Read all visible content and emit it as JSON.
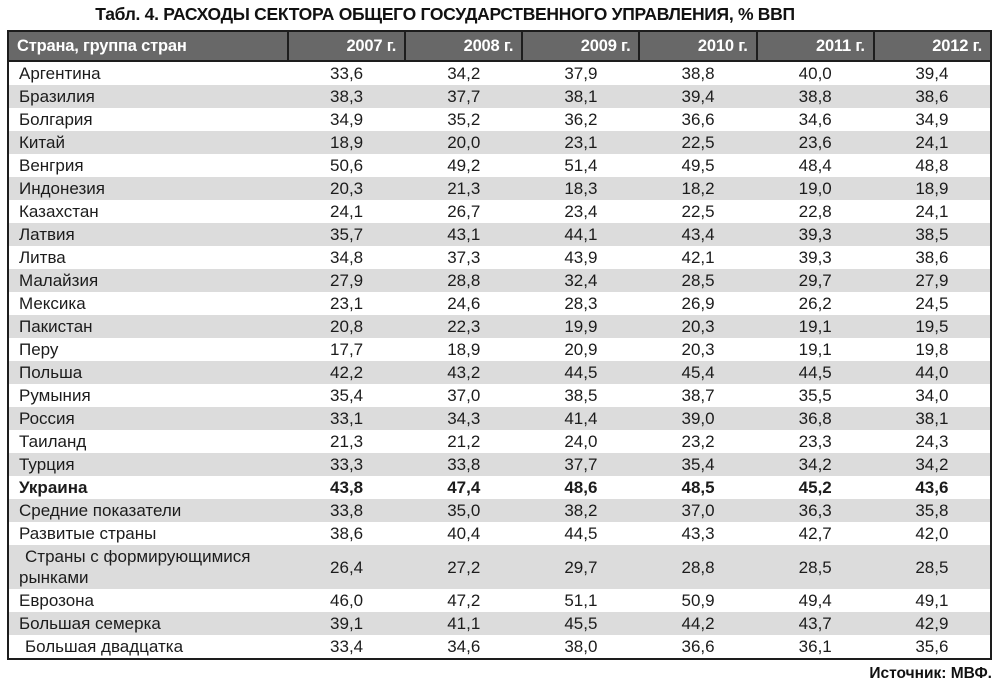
{
  "page": {
    "title": "Табл. 4. РАСХОДЫ СЕКТОРА ОБЩЕГО ГОСУДАРСТВЕННОГО УПРАВЛЕНИЯ, % ВВП",
    "source": "Источник: МВФ."
  },
  "colors": {
    "header_bg": "#686868",
    "header_text": "#ffffff",
    "zebra": "#dcdcdc",
    "border": "#1d1d1d",
    "text": "#1c1c1c"
  },
  "table": {
    "columns": [
      "Страна, группа стран",
      "2007 г.",
      "2008 г.",
      "2009 г.",
      "2010 г.",
      "2011 г.",
      "2012 г."
    ],
    "rows": [
      {
        "label": "Аргентина",
        "values": [
          "33,6",
          "34,2",
          "37,9",
          "38,8",
          "40,0",
          "39,4"
        ]
      },
      {
        "label": "Бразилия",
        "values": [
          "38,3",
          "37,7",
          "38,1",
          "39,4",
          "38,8",
          "38,6"
        ]
      },
      {
        "label": "Болгария",
        "values": [
          "34,9",
          "35,2",
          "36,2",
          "36,6",
          "34,6",
          "34,9"
        ]
      },
      {
        "label": "Китай",
        "values": [
          "18,9",
          "20,0",
          "23,1",
          "22,5",
          "23,6",
          "24,1"
        ]
      },
      {
        "label": "Венгрия",
        "values": [
          "50,6",
          "49,2",
          "51,4",
          "49,5",
          "48,4",
          "48,8"
        ]
      },
      {
        "label": "Индонезия",
        "values": [
          "20,3",
          "21,3",
          "18,3",
          "18,2",
          "19,0",
          "18,9"
        ]
      },
      {
        "label": "Казахстан",
        "values": [
          "24,1",
          "26,7",
          "23,4",
          "22,5",
          "22,8",
          "24,1"
        ]
      },
      {
        "label": "Латвия",
        "values": [
          "35,7",
          "43,1",
          "44,1",
          "43,4",
          "39,3",
          "38,5"
        ]
      },
      {
        "label": "Литва",
        "values": [
          "34,8",
          "37,3",
          "43,9",
          "42,1",
          "39,3",
          "38,6"
        ]
      },
      {
        "label": "Малайзия",
        "values": [
          "27,9",
          "28,8",
          "32,4",
          "28,5",
          "29,7",
          "27,9"
        ]
      },
      {
        "label": "Мексика",
        "values": [
          "23,1",
          "24,6",
          "28,3",
          "26,9",
          "26,2",
          "24,5"
        ]
      },
      {
        "label": "Пакистан",
        "values": [
          "20,8",
          "22,3",
          "19,9",
          "20,3",
          "19,1",
          "19,5"
        ]
      },
      {
        "label": "Перу",
        "values": [
          "17,7",
          "18,9",
          "20,9",
          "20,3",
          "19,1",
          "19,8"
        ]
      },
      {
        "label": "Польша",
        "values": [
          "42,2",
          "43,2",
          "44,5",
          "45,4",
          "44,5",
          "44,0"
        ]
      },
      {
        "label": "Румыния",
        "values": [
          "35,4",
          "37,0",
          "38,5",
          "38,7",
          "35,5",
          "34,0"
        ]
      },
      {
        "label": "Россия",
        "values": [
          "33,1",
          "34,3",
          "41,4",
          "39,0",
          "36,8",
          "38,1"
        ]
      },
      {
        "label": "Таиланд",
        "values": [
          "21,3",
          "21,2",
          "24,0",
          "23,2",
          "23,3",
          "24,3"
        ]
      },
      {
        "label": "Турция",
        "values": [
          "33,3",
          "33,8",
          "37,7",
          "35,4",
          "34,2",
          "34,2"
        ]
      },
      {
        "label": "Украина",
        "values": [
          "43,8",
          "47,4",
          "48,6",
          "48,5",
          "45,2",
          "43,6"
        ],
        "bold": true
      },
      {
        "label": "Средние показатели",
        "values": [
          "33,8",
          "35,0",
          "38,2",
          "37,0",
          "36,3",
          "35,8"
        ]
      },
      {
        "label": "Развитые страны",
        "values": [
          "38,6",
          "40,4",
          "44,5",
          "43,3",
          "42,7",
          "42,0"
        ]
      },
      {
        "label": "Страны с формирующимися рынками",
        "values": [
          "26,4",
          "27,2",
          "29,7",
          "28,8",
          "28,5",
          "28,5"
        ],
        "indent": true
      },
      {
        "label": "Еврозона",
        "values": [
          "46,0",
          "47,2",
          "51,1",
          "50,9",
          "49,4",
          "49,1"
        ]
      },
      {
        "label": "Большая семерка",
        "values": [
          "39,1",
          "41,1",
          "45,5",
          "44,2",
          "43,7",
          "42,9"
        ]
      },
      {
        "label": "Большая двадцатка",
        "values": [
          "33,4",
          "34,6",
          "38,0",
          "36,6",
          "36,1",
          "35,6"
        ],
        "indent": true
      }
    ]
  }
}
